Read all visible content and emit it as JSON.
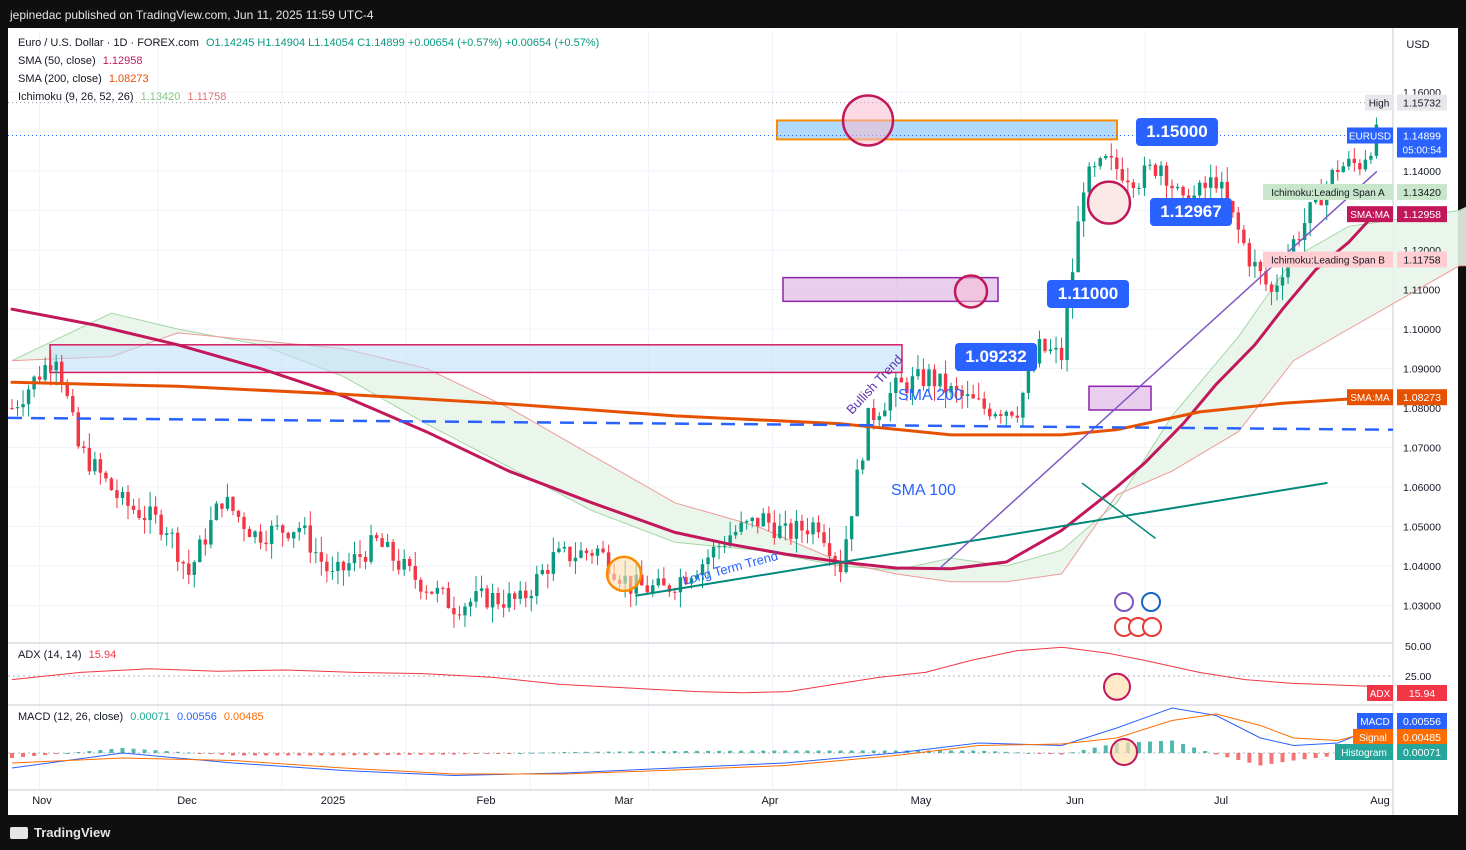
{
  "header": {
    "published": "jepinedac published on TradingView.com, Jun 11, 2025 11:59 UTC-4"
  },
  "footer": {
    "brand": "TradingView"
  },
  "legend": {
    "symbol": "Euro / U.S. Dollar · 1D · FOREX.com",
    "ohlc": "O1.14245  H1.14904  L1.14054  C1.14899  +0.00654 (+0.57%)  +0.00654 (+0.57%)",
    "sma50_label": "SMA (50, close)",
    "sma50_value": "1.12958",
    "sma200_label": "SMA (200, close)",
    "sma200_value": "1.08273",
    "ichimoku_label": "Ichimoku (9, 26, 52, 26)",
    "ichimoku_a": "1.13420",
    "ichimoku_b": "1.11758",
    "adx_label": "ADX (14, 14)",
    "adx_value": "15.94",
    "macd_label": "MACD (12, 26, close)",
    "macd_hist": "0.00071",
    "macd_macd": "0.00556",
    "macd_signal": "0.00485"
  },
  "annotations": {
    "level_1": "1.15000",
    "level_2": "1.12967",
    "level_3": "1.11000",
    "level_4": "1.09232",
    "sma200_text": "SMA 200",
    "sma100_text": "SMA 100",
    "long_trend_text": "Long Term Trend",
    "bullish_trend_text": "Bullish Trend"
  },
  "price_axis": {
    "currency": "USD",
    "ticks": [
      "1.16000",
      "1.15000",
      "1.14000",
      "1.13000",
      "1.12000",
      "1.11000",
      "1.10000",
      "1.09000",
      "1.08000",
      "1.07000",
      "1.06000",
      "1.05000",
      "1.04000",
      "1.03000"
    ],
    "high_label": "High",
    "high_value": "1.15732",
    "eurusd_label": "EURUSD",
    "eurusd_value": "1.14899",
    "countdown": "05:00:54",
    "span_a_label": "Ichimoku:Leading Span A",
    "span_a_value": "1.13420",
    "sma_ma_label": "SMA:MA",
    "sma_ma_value": "1.12958",
    "span_b_label": "Ichimoku:Leading Span B",
    "span_b_value": "1.11758",
    "sma_ma2_label": "SMA:MA",
    "sma_ma2_value": "1.08273",
    "adx_ticks": [
      "50.00",
      "25.00"
    ],
    "adx_label": "ADX",
    "adx_value": "15.94",
    "macd_label": "MACD",
    "macd_value": "0.00556",
    "signal_label": "Signal",
    "signal_value": "0.00485",
    "hist_label": "Histogram",
    "hist_value": "0.00071"
  },
  "time_axis": [
    "Nov",
    "Dec",
    "2025",
    "Feb",
    "Mar",
    "Apr",
    "May",
    "Jun",
    "Jul",
    "Aug"
  ],
  "colors": {
    "bull": "#26a69a",
    "bear": "#ef5350",
    "sma50": "#c2185b",
    "sma200": "#e65100",
    "cloud_green": "#c8e6c9",
    "cloud_red": "#ffcdd2",
    "level_blue": "#2962ff"
  },
  "chart_data": {
    "type": "candlestick",
    "symbol": "EURUSD",
    "timeframe": "1D",
    "ylim": [
      1.025,
      1.165
    ],
    "series": [
      {
        "name": "SMA (50, close)",
        "values": [
          [
            0,
            1.105
          ],
          [
            15,
            1.101
          ],
          [
            30,
            1.096
          ],
          [
            45,
            1.09
          ],
          [
            60,
            1.083
          ],
          [
            75,
            1.074
          ],
          [
            90,
            1.064
          ],
          [
            105,
            1.056
          ],
          [
            120,
            1.0485
          ],
          [
            130,
            1.0455
          ],
          [
            140,
            1.043
          ],
          [
            150,
            1.041
          ],
          [
            160,
            1.0395
          ],
          [
            170,
            1.0393
          ],
          [
            180,
            1.041
          ],
          [
            190,
            1.049
          ],
          [
            200,
            1.06
          ],
          [
            205,
            1.066
          ],
          [
            212,
            1.076
          ],
          [
            218,
            1.086
          ],
          [
            225,
            1.096
          ],
          [
            230,
            1.105
          ],
          [
            236,
            1.115
          ],
          [
            242,
            1.122
          ],
          [
            247,
            1.1296
          ]
        ]
      },
      {
        "name": "SMA (200, close)",
        "values": [
          [
            0,
            1.0865
          ],
          [
            30,
            1.0855
          ],
          [
            60,
            1.0835
          ],
          [
            90,
            1.081
          ],
          [
            120,
            1.078
          ],
          [
            150,
            1.076
          ],
          [
            170,
            1.0732
          ],
          [
            190,
            1.0732
          ],
          [
            200,
            1.0745
          ],
          [
            215,
            1.079
          ],
          [
            230,
            1.0812
          ],
          [
            247,
            1.0827
          ]
        ]
      },
      {
        "name": "Long Term Trend",
        "values": [
          [
            113,
            1.0325
          ],
          [
            238,
            1.061
          ]
        ]
      },
      {
        "name": "Bullish Trend",
        "values": [
          [
            168,
            1.0395
          ],
          [
            247,
            1.1398
          ]
        ]
      }
    ],
    "levels": [
      1.15,
      1.12967,
      1.11,
      1.09232,
      1.076
    ],
    "adx_last": 15.94,
    "macd_last": {
      "macd": 0.00556,
      "signal": 0.00485,
      "histogram": 0.00071
    }
  }
}
